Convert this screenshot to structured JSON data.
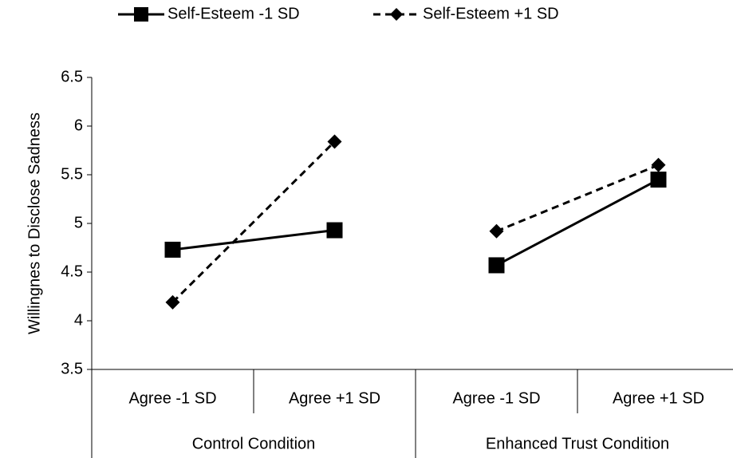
{
  "chart_data": {
    "type": "line",
    "ylabel": "Willingnes to Disclose Sadness",
    "categories": [
      "Agree -1 SD",
      "Agree +1 SD",
      "Agree -1 SD",
      "Agree +1 SD"
    ],
    "groups": [
      "Control Condition",
      "Enhanced Trust Condition"
    ],
    "series": [
      {
        "name": "Self-Esteem -1 SD",
        "color": "#000000",
        "marker": "square",
        "dashed": false,
        "values": [
          4.73,
          4.93,
          4.57,
          5.45
        ]
      },
      {
        "name": "Self-Esteem +1 SD",
        "color": "#000000",
        "marker": "diamond",
        "dashed": true,
        "values": [
          4.19,
          5.84,
          4.92,
          5.6
        ]
      }
    ],
    "ylim": [
      3.5,
      6.5
    ],
    "yticks": [
      3.5,
      4,
      4.5,
      5,
      5.5,
      6,
      6.5
    ],
    "grid": false,
    "legend": "top"
  }
}
